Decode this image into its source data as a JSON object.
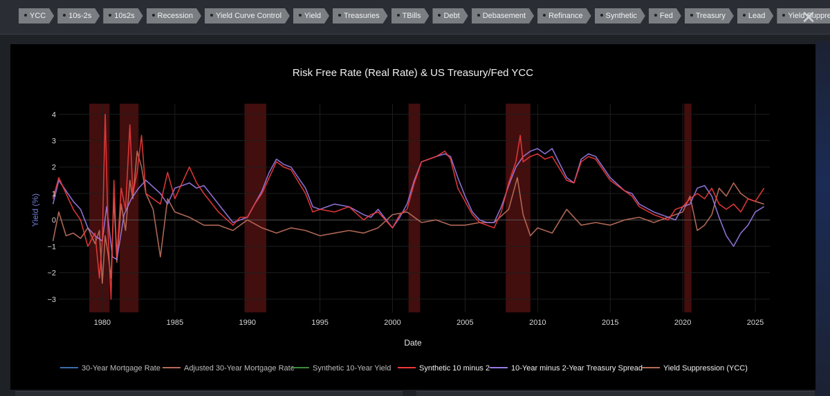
{
  "tags": [
    "YCC",
    "10s-2s",
    "10s2s",
    "Recession",
    "Yield Curve Control",
    "Yield",
    "Treasuries",
    "TBills",
    "Debt",
    "Debasement",
    "Refinance",
    "Synthetic",
    "Fed",
    "Treasury",
    "Lead",
    "Yield Suppression"
  ],
  "close_icon": "close-icon",
  "colors": {
    "mortgage": "#3a6fb0",
    "adjusted": "#b86d5a",
    "synthetic10": "#3f8a3f",
    "synthetic10m2": "#ef3b3b",
    "spread": "#9b7be8",
    "ycc": "#b86d5a",
    "recession": "#4a0f0f"
  },
  "chart_data": {
    "type": "line",
    "title": "Risk Free Rate (Real Rate) & US Treasury/Fed YCC",
    "xlabel": "Date",
    "ylabel": "Yield (%)",
    "xlim": [
      1977.0,
      2026.0
    ],
    "ylim": [
      -3.5,
      4.4
    ],
    "x_ticks": [
      1980,
      1985,
      1990,
      1995,
      2000,
      2005,
      2010,
      2015,
      2020,
      2025
    ],
    "y_ticks": [
      -3,
      -2,
      -1,
      0,
      1,
      2,
      3,
      4
    ],
    "y_tick_labels": [
      "−3",
      "−2",
      "−1",
      "0",
      "1",
      "2",
      "3",
      "4"
    ],
    "recessions": [
      [
        1979.1,
        1980.5
      ],
      [
        1981.2,
        1982.5
      ],
      [
        1989.8,
        1991.3
      ],
      [
        2001.1,
        2001.9
      ],
      [
        2007.8,
        2009.5
      ],
      [
        2020.1,
        2020.6
      ]
    ],
    "legend": [
      "30-Year Mortgage Rate",
      "Adjusted 30-Year Mortgage Rate",
      "Synthetic 10-Year Yield",
      "Synthetic 10 minus 2",
      "10-Year minus 2-Year Treasury Spread",
      "Yield Suppression (YCC)"
    ],
    "series": [
      {
        "name": "10-Year minus 2-Year Treasury Spread",
        "x": [
          1976.6,
          1977.0,
          1977.5,
          1978.0,
          1978.5,
          1979.0,
          1979.5,
          1980.0,
          1980.3,
          1980.7,
          1981.0,
          1981.5,
          1982.0,
          1982.5,
          1983.0,
          1984.0,
          1984.5,
          1985.0,
          1986.0,
          1986.5,
          1987.0,
          1988.0,
          1989.0,
          1989.5,
          1990.0,
          1990.5,
          1991.0,
          1991.5,
          1992.0,
          1992.5,
          1993.0,
          1994.0,
          1994.5,
          1995.0,
          1996.0,
          1997.0,
          1998.0,
          1998.5,
          1999.0,
          2000.0,
          2000.5,
          2001.0,
          2001.5,
          2002.0,
          2003.0,
          2003.6,
          2004.0,
          2004.5,
          2005.0,
          2005.5,
          2006.0,
          2006.5,
          2007.0,
          2007.5,
          2008.0,
          2008.5,
          2009.0,
          2009.5,
          2010.0,
          2010.5,
          2011.0,
          2012.0,
          2012.5,
          2013.0,
          2013.5,
          2014.0,
          2015.0,
          2016.0,
          2016.5,
          2017.0,
          2018.0,
          2018.5,
          2019.0,
          2019.5,
          2020.0,
          2020.5,
          2021.0,
          2021.5,
          2022.0,
          2022.5,
          2023.0,
          2023.5,
          2024.0,
          2024.5,
          2025.0,
          2025.6
        ],
        "y": [
          0.6,
          1.5,
          1.1,
          0.7,
          0.4,
          -0.3,
          -0.6,
          -0.8,
          0.5,
          -1.4,
          -1.5,
          0.2,
          0.8,
          1.2,
          1.5,
          1.0,
          0.6,
          1.2,
          1.4,
          1.2,
          1.3,
          0.6,
          -0.1,
          0.0,
          0.1,
          0.6,
          1.1,
          1.8,
          2.3,
          2.1,
          2.0,
          1.2,
          0.5,
          0.4,
          0.6,
          0.5,
          0.2,
          0.1,
          0.4,
          -0.3,
          0.1,
          0.6,
          1.5,
          2.2,
          2.4,
          2.5,
          2.4,
          1.6,
          0.9,
          0.3,
          0.0,
          -0.1,
          -0.1,
          0.5,
          1.3,
          2.0,
          2.4,
          2.6,
          2.7,
          2.5,
          2.7,
          1.6,
          1.4,
          2.3,
          2.5,
          2.4,
          1.6,
          1.1,
          1.0,
          0.6,
          0.3,
          0.2,
          0.1,
          0.0,
          0.5,
          0.6,
          1.2,
          1.3,
          0.9,
          0.1,
          -0.6,
          -1.0,
          -0.5,
          -0.2,
          0.3,
          0.5
        ]
      },
      {
        "name": "Synthetic 10 minus 2",
        "x": [
          1976.6,
          1977.0,
          1977.5,
          1978.0,
          1978.5,
          1979.0,
          1979.5,
          1979.8,
          1980.0,
          1980.2,
          1980.4,
          1980.6,
          1980.8,
          1981.0,
          1981.3,
          1981.6,
          1981.9,
          1982.1,
          1982.4,
          1982.7,
          1983.0,
          1984.0,
          1984.5,
          1985.0,
          1986.0,
          1986.5,
          1987.0,
          1988.0,
          1989.0,
          1989.5,
          1990.0,
          1990.5,
          1991.0,
          1991.5,
          1992.0,
          1992.5,
          1993.0,
          1994.0,
          1994.5,
          1995.0,
          1996.0,
          1997.0,
          1998.0,
          1998.5,
          1999.0,
          2000.0,
          2000.5,
          2001.0,
          2001.5,
          2002.0,
          2003.0,
          2003.6,
          2004.0,
          2004.5,
          2005.0,
          2005.5,
          2006.0,
          2006.5,
          2007.0,
          2007.5,
          2008.0,
          2008.5,
          2008.8,
          2009.0,
          2009.5,
          2010.0,
          2010.5,
          2011.0,
          2012.0,
          2012.5,
          2013.0,
          2013.5,
          2014.0,
          2015.0,
          2016.0,
          2016.5,
          2017.0,
          2018.0,
          2018.5,
          2019.0,
          2019.5,
          2020.0,
          2020.5,
          2021.0,
          2021.5,
          2022.0,
          2022.5,
          2023.0,
          2023.5,
          2024.0,
          2024.5,
          2025.0,
          2025.6
        ],
        "y": [
          0.8,
          1.6,
          1.0,
          0.4,
          0.0,
          -1.0,
          -0.5,
          -2.2,
          -0.8,
          4.0,
          -0.5,
          -3.0,
          1.5,
          -1.4,
          1.2,
          0.4,
          3.6,
          1.0,
          1.8,
          3.2,
          1.0,
          0.6,
          1.8,
          0.8,
          2.0,
          1.4,
          1.0,
          0.3,
          -0.2,
          0.1,
          0.1,
          0.6,
          1.0,
          1.6,
          2.2,
          2.0,
          1.9,
          1.0,
          0.3,
          0.4,
          0.3,
          0.5,
          0.0,
          0.2,
          0.3,
          -0.3,
          0.2,
          0.4,
          1.4,
          2.2,
          2.4,
          2.6,
          2.3,
          1.2,
          0.7,
          0.2,
          -0.1,
          -0.2,
          -0.3,
          0.3,
          1.4,
          2.2,
          3.2,
          2.2,
          2.4,
          2.5,
          2.3,
          2.4,
          1.5,
          1.4,
          2.2,
          2.4,
          2.3,
          1.5,
          1.1,
          0.9,
          0.5,
          0.2,
          0.1,
          0.0,
          0.4,
          0.5,
          0.8,
          1.0,
          0.8,
          1.2,
          0.6,
          0.4,
          0.6,
          0.3,
          0.8,
          0.7,
          1.2
        ]
      },
      {
        "name": "Yield Suppression (YCC)",
        "x": [
          1976.6,
          1977.0,
          1977.5,
          1978.0,
          1978.5,
          1979.0,
          1979.5,
          1979.8,
          1980.0,
          1980.2,
          1980.4,
          1980.6,
          1980.8,
          1981.0,
          1981.3,
          1981.6,
          1981.9,
          1982.1,
          1982.4,
          1982.7,
          1983.0,
          1983.5,
          1984.0,
          1984.5,
          1985.0,
          1986.0,
          1987.0,
          1988.0,
          1989.0,
          1990.0,
          1991.0,
          1992.0,
          1993.0,
          1994.0,
          1995.0,
          1996.0,
          1997.0,
          1998.0,
          1999.0,
          2000.0,
          2001.0,
          2002.0,
          2003.0,
          2004.0,
          2005.0,
          2006.0,
          2007.0,
          2008.0,
          2008.6,
          2009.0,
          2009.5,
          2010.0,
          2011.0,
          2012.0,
          2013.0,
          2014.0,
          2015.0,
          2016.0,
          2017.0,
          2018.0,
          2019.0,
          2020.0,
          2020.5,
          2021.0,
          2021.5,
          2022.0,
          2022.5,
          2023.0,
          2023.5,
          2024.0,
          2024.5,
          2025.0,
          2025.6
        ],
        "y": [
          -0.8,
          0.3,
          -0.6,
          -0.5,
          -0.7,
          -0.3,
          -0.9,
          -0.4,
          -2.4,
          -0.6,
          -1.3,
          -2.2,
          0.8,
          -1.6,
          0.6,
          -0.4,
          1.5,
          0.8,
          2.6,
          2.0,
          1.0,
          0.4,
          -1.4,
          0.8,
          0.3,
          0.1,
          -0.2,
          -0.2,
          -0.4,
          0.0,
          -0.3,
          -0.5,
          -0.3,
          -0.4,
          -0.6,
          -0.5,
          -0.4,
          -0.5,
          -0.3,
          0.2,
          0.3,
          -0.1,
          0.0,
          -0.2,
          -0.2,
          -0.1,
          -0.1,
          0.4,
          1.6,
          0.2,
          -0.6,
          -0.3,
          -0.5,
          0.4,
          -0.2,
          -0.1,
          -0.2,
          0.0,
          0.1,
          -0.1,
          0.1,
          0.3,
          0.9,
          -0.4,
          -0.2,
          0.2,
          1.2,
          0.9,
          1.4,
          1.0,
          0.8,
          0.7,
          0.6
        ]
      }
    ]
  }
}
